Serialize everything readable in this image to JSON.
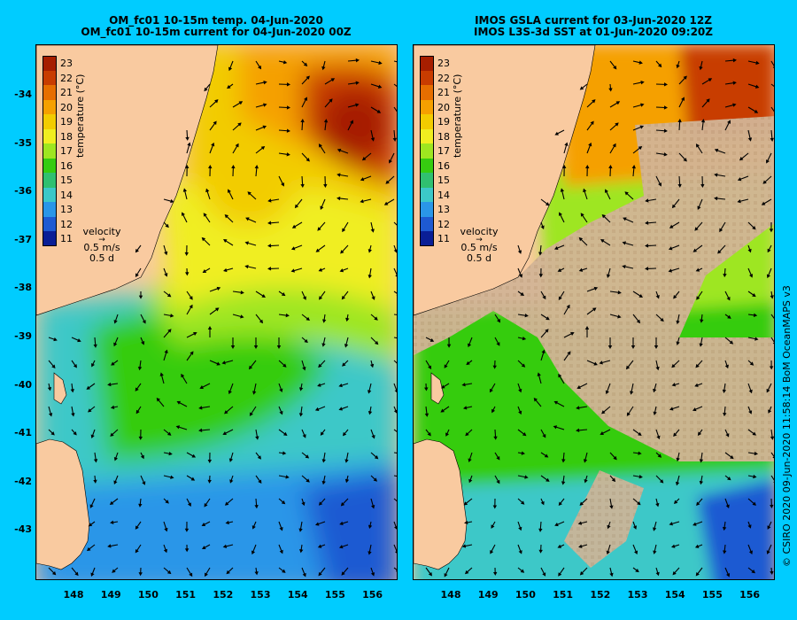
{
  "left_panel": {
    "title_line1": "OM_fc01 10-15m temp. 04-Jun-2020",
    "title_line2": "OM_fc01 10-15m current for 04-Jun-2020 00Z"
  },
  "right_panel": {
    "title_line1": "IMOS GSLA current for 03-Jun-2020 12Z",
    "title_line2": "IMOS L3S-3d SST at 01-Jun-2020 09:20Z"
  },
  "y_ticks": [
    "-34",
    "-35",
    "-36",
    "-37",
    "-38",
    "-39",
    "-40",
    "-41",
    "-42",
    "-43"
  ],
  "x_ticks": [
    "148",
    "149",
    "150",
    "151",
    "152",
    "153",
    "154",
    "155",
    "156"
  ],
  "colorbar": {
    "title": "temperature (°C)",
    "labels": [
      "23",
      "22",
      "21",
      "20",
      "19",
      "18",
      "17",
      "16",
      "15",
      "14",
      "13",
      "12",
      "11"
    ],
    "colors": [
      "#a61e00",
      "#c83c00",
      "#e66e00",
      "#f5a000",
      "#f2cc00",
      "#f0ee20",
      "#9ee620",
      "#36cc10",
      "#30c070",
      "#3cc8c8",
      "#2a96e8",
      "#1e5ad2",
      "#0a1e96"
    ]
  },
  "velocity_scale": {
    "label": "velocity",
    "speed": "0.5 m/s",
    "duration": "0.5 d"
  },
  "credit": "© CSIRO 2020  09-Jun-2020 11:58:14 BoM OceanMAPS v3",
  "colors": {
    "background": "#00ccff",
    "land": "#f9caa0",
    "cloud": "#d2b496",
    "arrow": "#000000"
  }
}
